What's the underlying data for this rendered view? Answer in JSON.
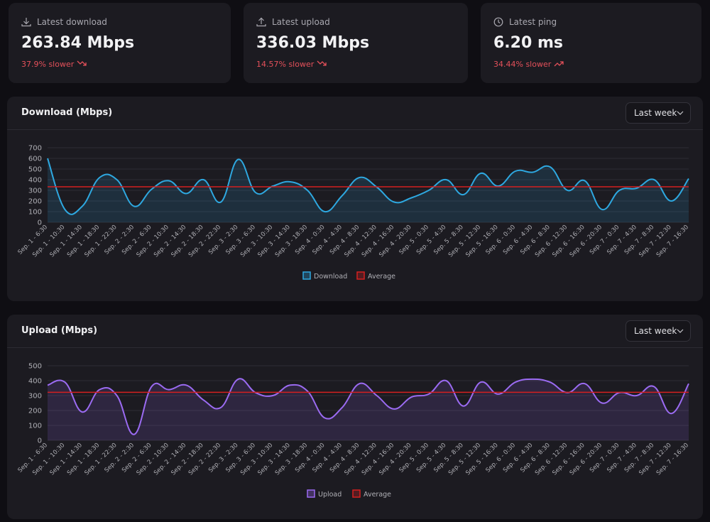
{
  "cards": [
    {
      "label": "Latest download",
      "value": "263.84 Mbps",
      "change": "37.9% slower"
    },
    {
      "label": "Latest upload",
      "value": "336.03 Mbps",
      "change": "14.57% slower"
    },
    {
      "label": "Latest ping",
      "value": "6.20 ms",
      "change": "34.44% slower"
    }
  ],
  "chart_data": [
    {
      "type": "line",
      "title": "Download (Mbps)",
      "range_label": "Last week",
      "categories": [
        "Sep. 1 - 6:30",
        "Sep. 1 - 10:30",
        "Sep. 1 - 14:30",
        "Sep. 1 - 18:30",
        "Sep. 1 - 22:30",
        "Sep. 2 - 2:30",
        "Sep. 2 - 6:30",
        "Sep. 2 - 10:30",
        "Sep. 2 - 14:30",
        "Sep. 2 - 18:30",
        "Sep. 2 - 22:30",
        "Sep. 3 - 2:30",
        "Sep. 3 - 6:30",
        "Sep. 3 - 10:30",
        "Sep. 3 - 14:30",
        "Sep. 3 - 18:30",
        "Sep. 4 - 0:30",
        "Sep. 4 - 4:30",
        "Sep. 4 - 8:30",
        "Sep. 4 - 12:30",
        "Sep. 4 - 16:30",
        "Sep. 4 - 20:30",
        "Sep. 5 - 0:30",
        "Sep. 5 - 4:30",
        "Sep. 5 - 8:30",
        "Sep. 5 - 12:30",
        "Sep. 5 - 16:30",
        "Sep. 6 - 0:30",
        "Sep. 6 - 4:30",
        "Sep. 6 - 8:30",
        "Sep. 6 - 12:30",
        "Sep. 6 - 16:30",
        "Sep. 6 - 20:30",
        "Sep. 7 - 0:30",
        "Sep. 7 - 4:30",
        "Sep. 7 - 8:30",
        "Sep. 7 - 12:30",
        "Sep. 7 - 16:30"
      ],
      "series": [
        {
          "name": "Download",
          "color": "#2ea8e0",
          "values": [
            600,
            120,
            150,
            420,
            400,
            150,
            310,
            390,
            270,
            400,
            190,
            590,
            280,
            340,
            380,
            300,
            100,
            250,
            420,
            330,
            190,
            230,
            300,
            400,
            260,
            460,
            340,
            480,
            470,
            520,
            300,
            390,
            120,
            300,
            320,
            400,
            200,
            410
          ]
        },
        {
          "name": "Average",
          "color": "#d42020",
          "values": [
            333,
            333,
            333,
            333,
            333,
            333,
            333,
            333,
            333,
            333,
            333,
            333,
            333,
            333,
            333,
            333,
            333,
            333,
            333,
            333,
            333,
            333,
            333,
            333,
            333,
            333,
            333,
            333,
            333,
            333,
            333,
            333,
            333,
            333,
            333,
            333,
            333,
            333
          ]
        }
      ],
      "ylim": [
        0,
        700
      ],
      "yticks": [
        0,
        100,
        200,
        300,
        400,
        500,
        600,
        700
      ],
      "grid": true
    },
    {
      "type": "line",
      "title": "Upload (Mbps)",
      "range_label": "Last week",
      "categories": [
        "Sep. 1 - 6:30",
        "Sep. 1 - 10:30",
        "Sep. 1 - 14:30",
        "Sep. 1 - 18:30",
        "Sep. 1 - 22:30",
        "Sep. 2 - 2:30",
        "Sep. 2 - 6:30",
        "Sep. 2 - 10:30",
        "Sep. 2 - 14:30",
        "Sep. 2 - 18:30",
        "Sep. 2 - 22:30",
        "Sep. 3 - 2:30",
        "Sep. 3 - 6:30",
        "Sep. 3 - 10:30",
        "Sep. 3 - 14:30",
        "Sep. 3 - 18:30",
        "Sep. 4 - 0:30",
        "Sep. 4 - 4:30",
        "Sep. 4 - 8:30",
        "Sep. 4 - 12:30",
        "Sep. 4 - 16:30",
        "Sep. 4 - 20:30",
        "Sep. 5 - 0:30",
        "Sep. 5 - 4:30",
        "Sep. 5 - 8:30",
        "Sep. 5 - 12:30",
        "Sep. 5 - 16:30",
        "Sep. 6 - 0:30",
        "Sep. 6 - 4:30",
        "Sep. 6 - 8:30",
        "Sep. 6 - 12:30",
        "Sep. 6 - 16:30",
        "Sep. 6 - 20:30",
        "Sep. 7 - 0:30",
        "Sep. 7 - 4:30",
        "Sep. 7 - 8:30",
        "Sep. 7 - 12:30",
        "Sep. 7 - 16:30"
      ],
      "series": [
        {
          "name": "Upload",
          "color": "#9b6bf2",
          "values": [
            370,
            390,
            190,
            340,
            300,
            40,
            360,
            340,
            370,
            270,
            220,
            410,
            320,
            300,
            370,
            330,
            150,
            220,
            380,
            300,
            210,
            290,
            310,
            400,
            230,
            390,
            310,
            390,
            410,
            390,
            320,
            380,
            250,
            320,
            300,
            360,
            180,
            380
          ]
        },
        {
          "name": "Average",
          "color": "#d42020",
          "values": [
            322,
            322,
            322,
            322,
            322,
            322,
            322,
            322,
            322,
            322,
            322,
            322,
            322,
            322,
            322,
            322,
            322,
            322,
            322,
            322,
            322,
            322,
            322,
            322,
            322,
            322,
            322,
            322,
            322,
            322,
            322,
            322,
            322,
            322,
            322,
            322,
            322,
            322
          ]
        }
      ],
      "ylim": [
        0,
        500
      ],
      "yticks": [
        0,
        100,
        200,
        300,
        400,
        500
      ],
      "grid": true
    }
  ]
}
